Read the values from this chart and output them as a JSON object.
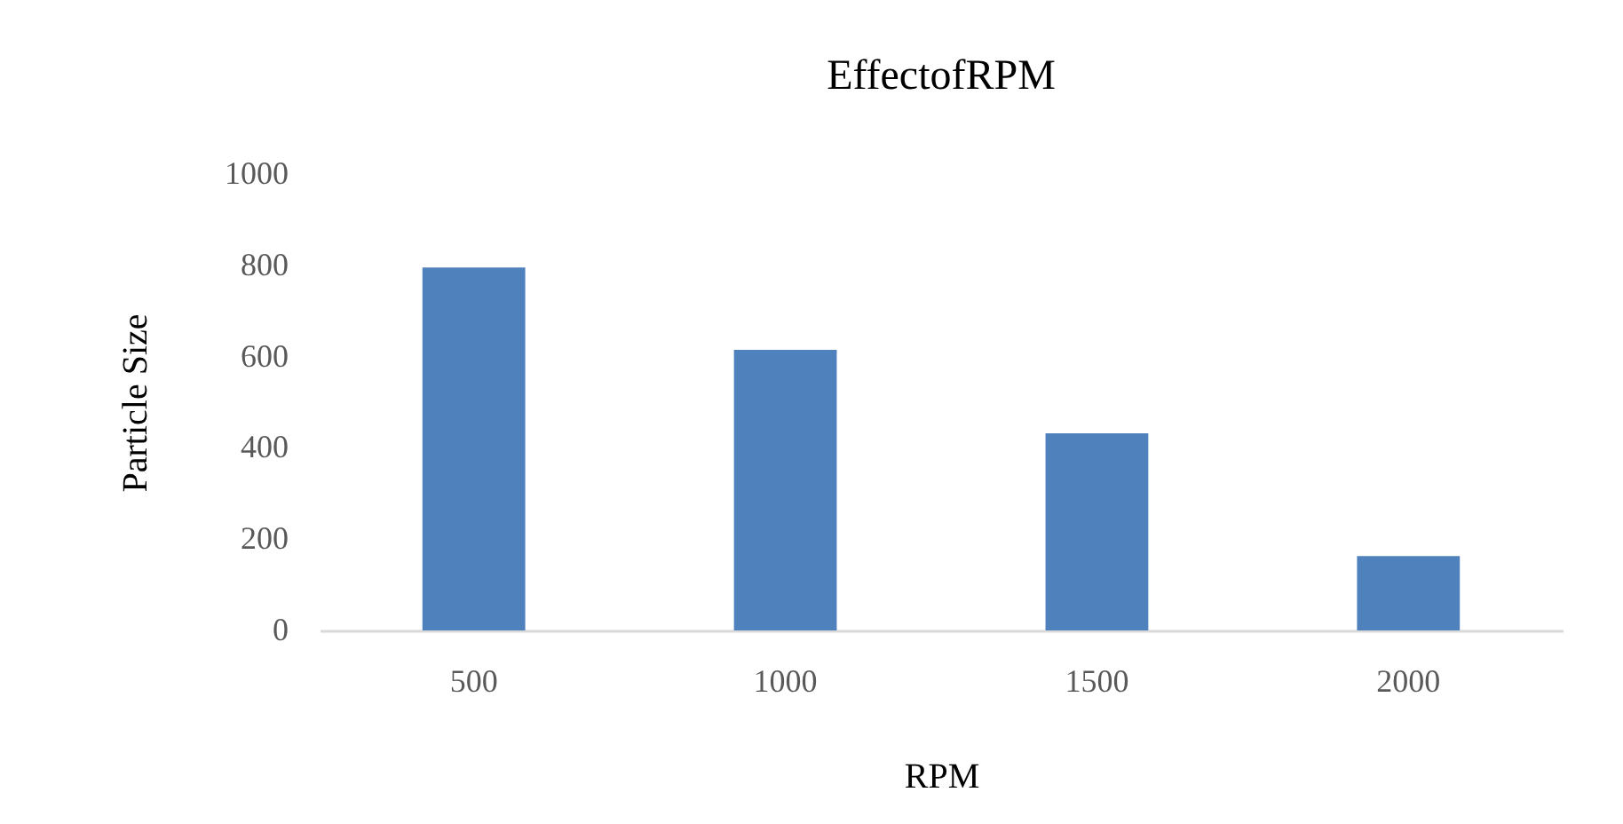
{
  "chart_data": {
    "type": "bar",
    "title": "EffectofRPM",
    "xlabel": "RPM",
    "ylabel": "Particle Size",
    "categories": [
      "500",
      "1000",
      "1500",
      "2000"
    ],
    "values": [
      795,
      615,
      432,
      163
    ],
    "color": "#4f81bd",
    "ylim": [
      0,
      1000
    ],
    "yticks": [
      0,
      200,
      400,
      600,
      800,
      1000
    ],
    "grid": false
  }
}
